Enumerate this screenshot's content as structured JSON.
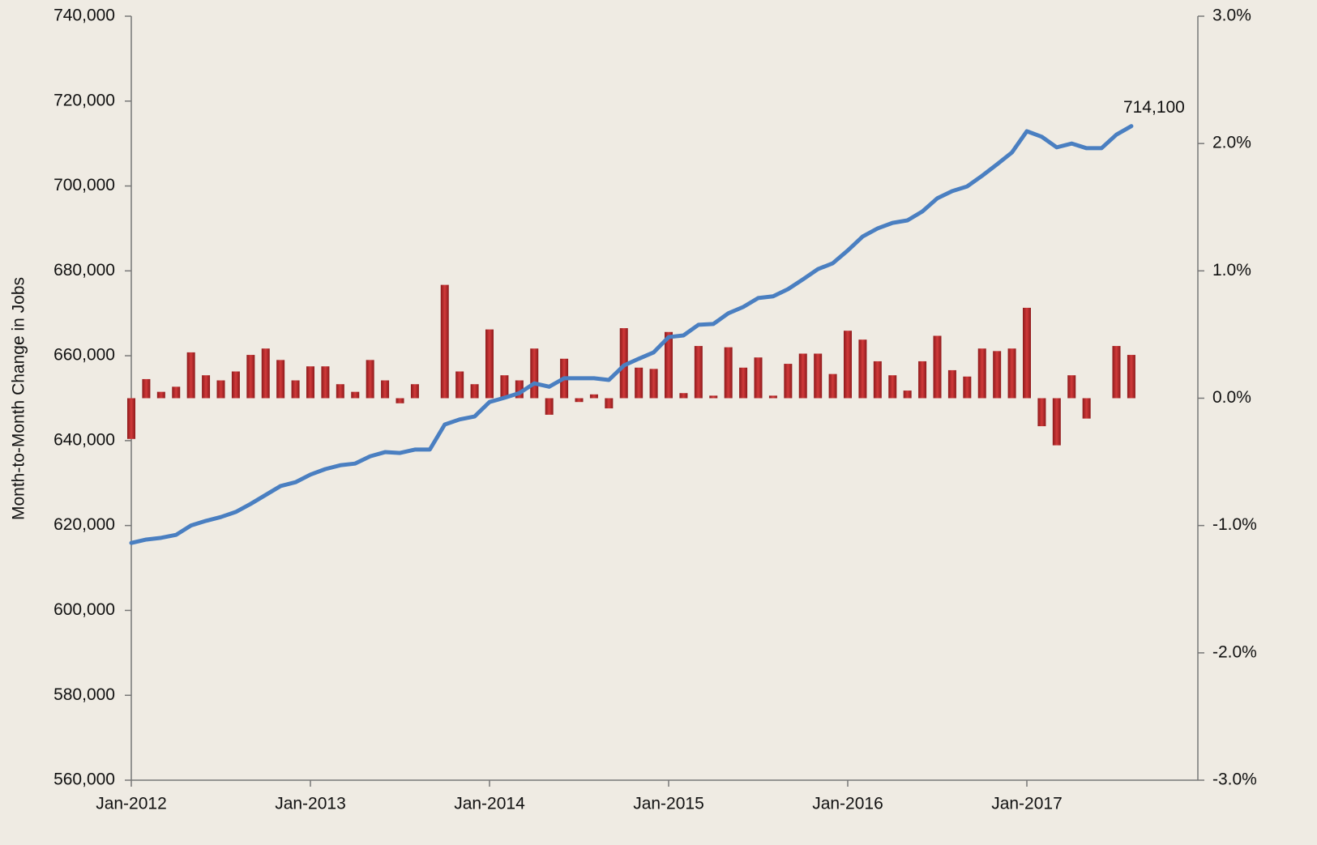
{
  "chart_data": {
    "type": "bar_line",
    "y_label": "Month-to-Month Change in Jobs",
    "categories": [
      "Jan-2012",
      null,
      null,
      null,
      null,
      null,
      null,
      null,
      null,
      null,
      null,
      null,
      "Jan-2013",
      null,
      null,
      null,
      null,
      null,
      null,
      null,
      null,
      null,
      null,
      null,
      "Jan-2014",
      null,
      null,
      null,
      null,
      null,
      null,
      null,
      null,
      null,
      null,
      null,
      "Jan-2015",
      null,
      null,
      null,
      null,
      null,
      null,
      null,
      null,
      null,
      null,
      null,
      "Jan-2016",
      null,
      null,
      null,
      null,
      null,
      null,
      null,
      null,
      null,
      null,
      null,
      "Jan-2017",
      null,
      null,
      null,
      null,
      null,
      null,
      null
    ],
    "series": [
      {
        "type": "line",
        "color": "#4a7fc1",
        "axis": "y",
        "values": [
          615900,
          616700,
          617100,
          617800,
          620000,
          621100,
          622000,
          623200,
          625100,
          627200,
          629300,
          630200,
          632000,
          633300,
          634200,
          634600,
          636300,
          637300,
          637100,
          637900,
          637900,
          643800,
          645000,
          645700,
          649100,
          650100,
          651200,
          653500,
          652700,
          654700,
          654700,
          654700,
          654300,
          657700,
          659300,
          660800,
          664400,
          664800,
          667300,
          667500,
          670000,
          671500,
          673600,
          674000,
          675700,
          678000,
          680400,
          681800,
          684800,
          688100,
          690000,
          691300,
          691900,
          694000,
          697100,
          698800,
          699900,
          702400,
          705100,
          707900,
          712900,
          711600,
          709100,
          710000,
          708900,
          708900,
          712100,
          714100
        ],
        "value_labels": [
          null,
          null,
          null,
          null,
          null,
          null,
          null,
          null,
          null,
          null,
          null,
          null,
          null,
          null,
          null,
          null,
          null,
          null,
          null,
          null,
          null,
          null,
          null,
          null,
          null,
          null,
          null,
          null,
          null,
          null,
          null,
          null,
          null,
          null,
          null,
          null,
          null,
          null,
          null,
          null,
          null,
          null,
          null,
          null,
          null,
          null,
          null,
          null,
          null,
          null,
          null,
          null,
          null,
          null,
          null,
          null,
          null,
          null,
          null,
          null,
          null,
          null,
          null,
          null,
          null,
          null,
          null,
          "714,100"
        ]
      },
      {
        "type": "bar",
        "color": "#b8282a",
        "axis": "y2",
        "values": [
          -0.32,
          0.15,
          0.05,
          0.09,
          0.36,
          0.18,
          0.14,
          0.21,
          0.34,
          0.39,
          0.3,
          0.14,
          0.25,
          0.25,
          0.11,
          0.05,
          0.3,
          0.14,
          -0.04,
          0.11,
          0,
          0.89,
          0.21,
          0.11,
          0.54,
          0.18,
          0.14,
          0.39,
          -0.13,
          0.31,
          -0.03,
          0.03,
          -0.08,
          0.55,
          0.24,
          0.23,
          0.52,
          0.04,
          0.41,
          0.02,
          0.4,
          0.24,
          0.32,
          0.02,
          0.27,
          0.35,
          0.35,
          0.19,
          0.53,
          0.46,
          0.29,
          0.18,
          0.06,
          0.29,
          0.49,
          0.22,
          0.17,
          0.39,
          0.37,
          0.39,
          0.71,
          -0.22,
          -0.37,
          0.18,
          -0.16,
          0,
          0.41,
          0.34
        ]
      }
    ],
    "ylim": [
      560000,
      740000
    ],
    "yticks": [
      {
        "value": 560000,
        "label": "560,000"
      },
      {
        "value": 580000,
        "label": "580,000"
      },
      {
        "value": 600000,
        "label": "600,000"
      },
      {
        "value": 620000,
        "label": "620,000"
      },
      {
        "value": 640000,
        "label": "640,000"
      },
      {
        "value": 660000,
        "label": "660,000"
      },
      {
        "value": 680000,
        "label": "680,000"
      },
      {
        "value": 700000,
        "label": "700,000"
      },
      {
        "value": 720000,
        "label": "720,000"
      },
      {
        "value": 740000,
        "label": "740,000"
      }
    ],
    "y2lim": [
      -3,
      3
    ],
    "y2ticks": [
      {
        "value": -3,
        "label": "-3.0%"
      },
      {
        "value": -2,
        "label": "-2.0%"
      },
      {
        "value": -1,
        "label": "-1.0%"
      },
      {
        "value": 0,
        "label": "0.0%"
      },
      {
        "value": 1,
        "label": "1.0%"
      },
      {
        "value": 2,
        "label": "2.0%"
      },
      {
        "value": 3,
        "label": "3.0%"
      }
    ],
    "grid": false
  }
}
